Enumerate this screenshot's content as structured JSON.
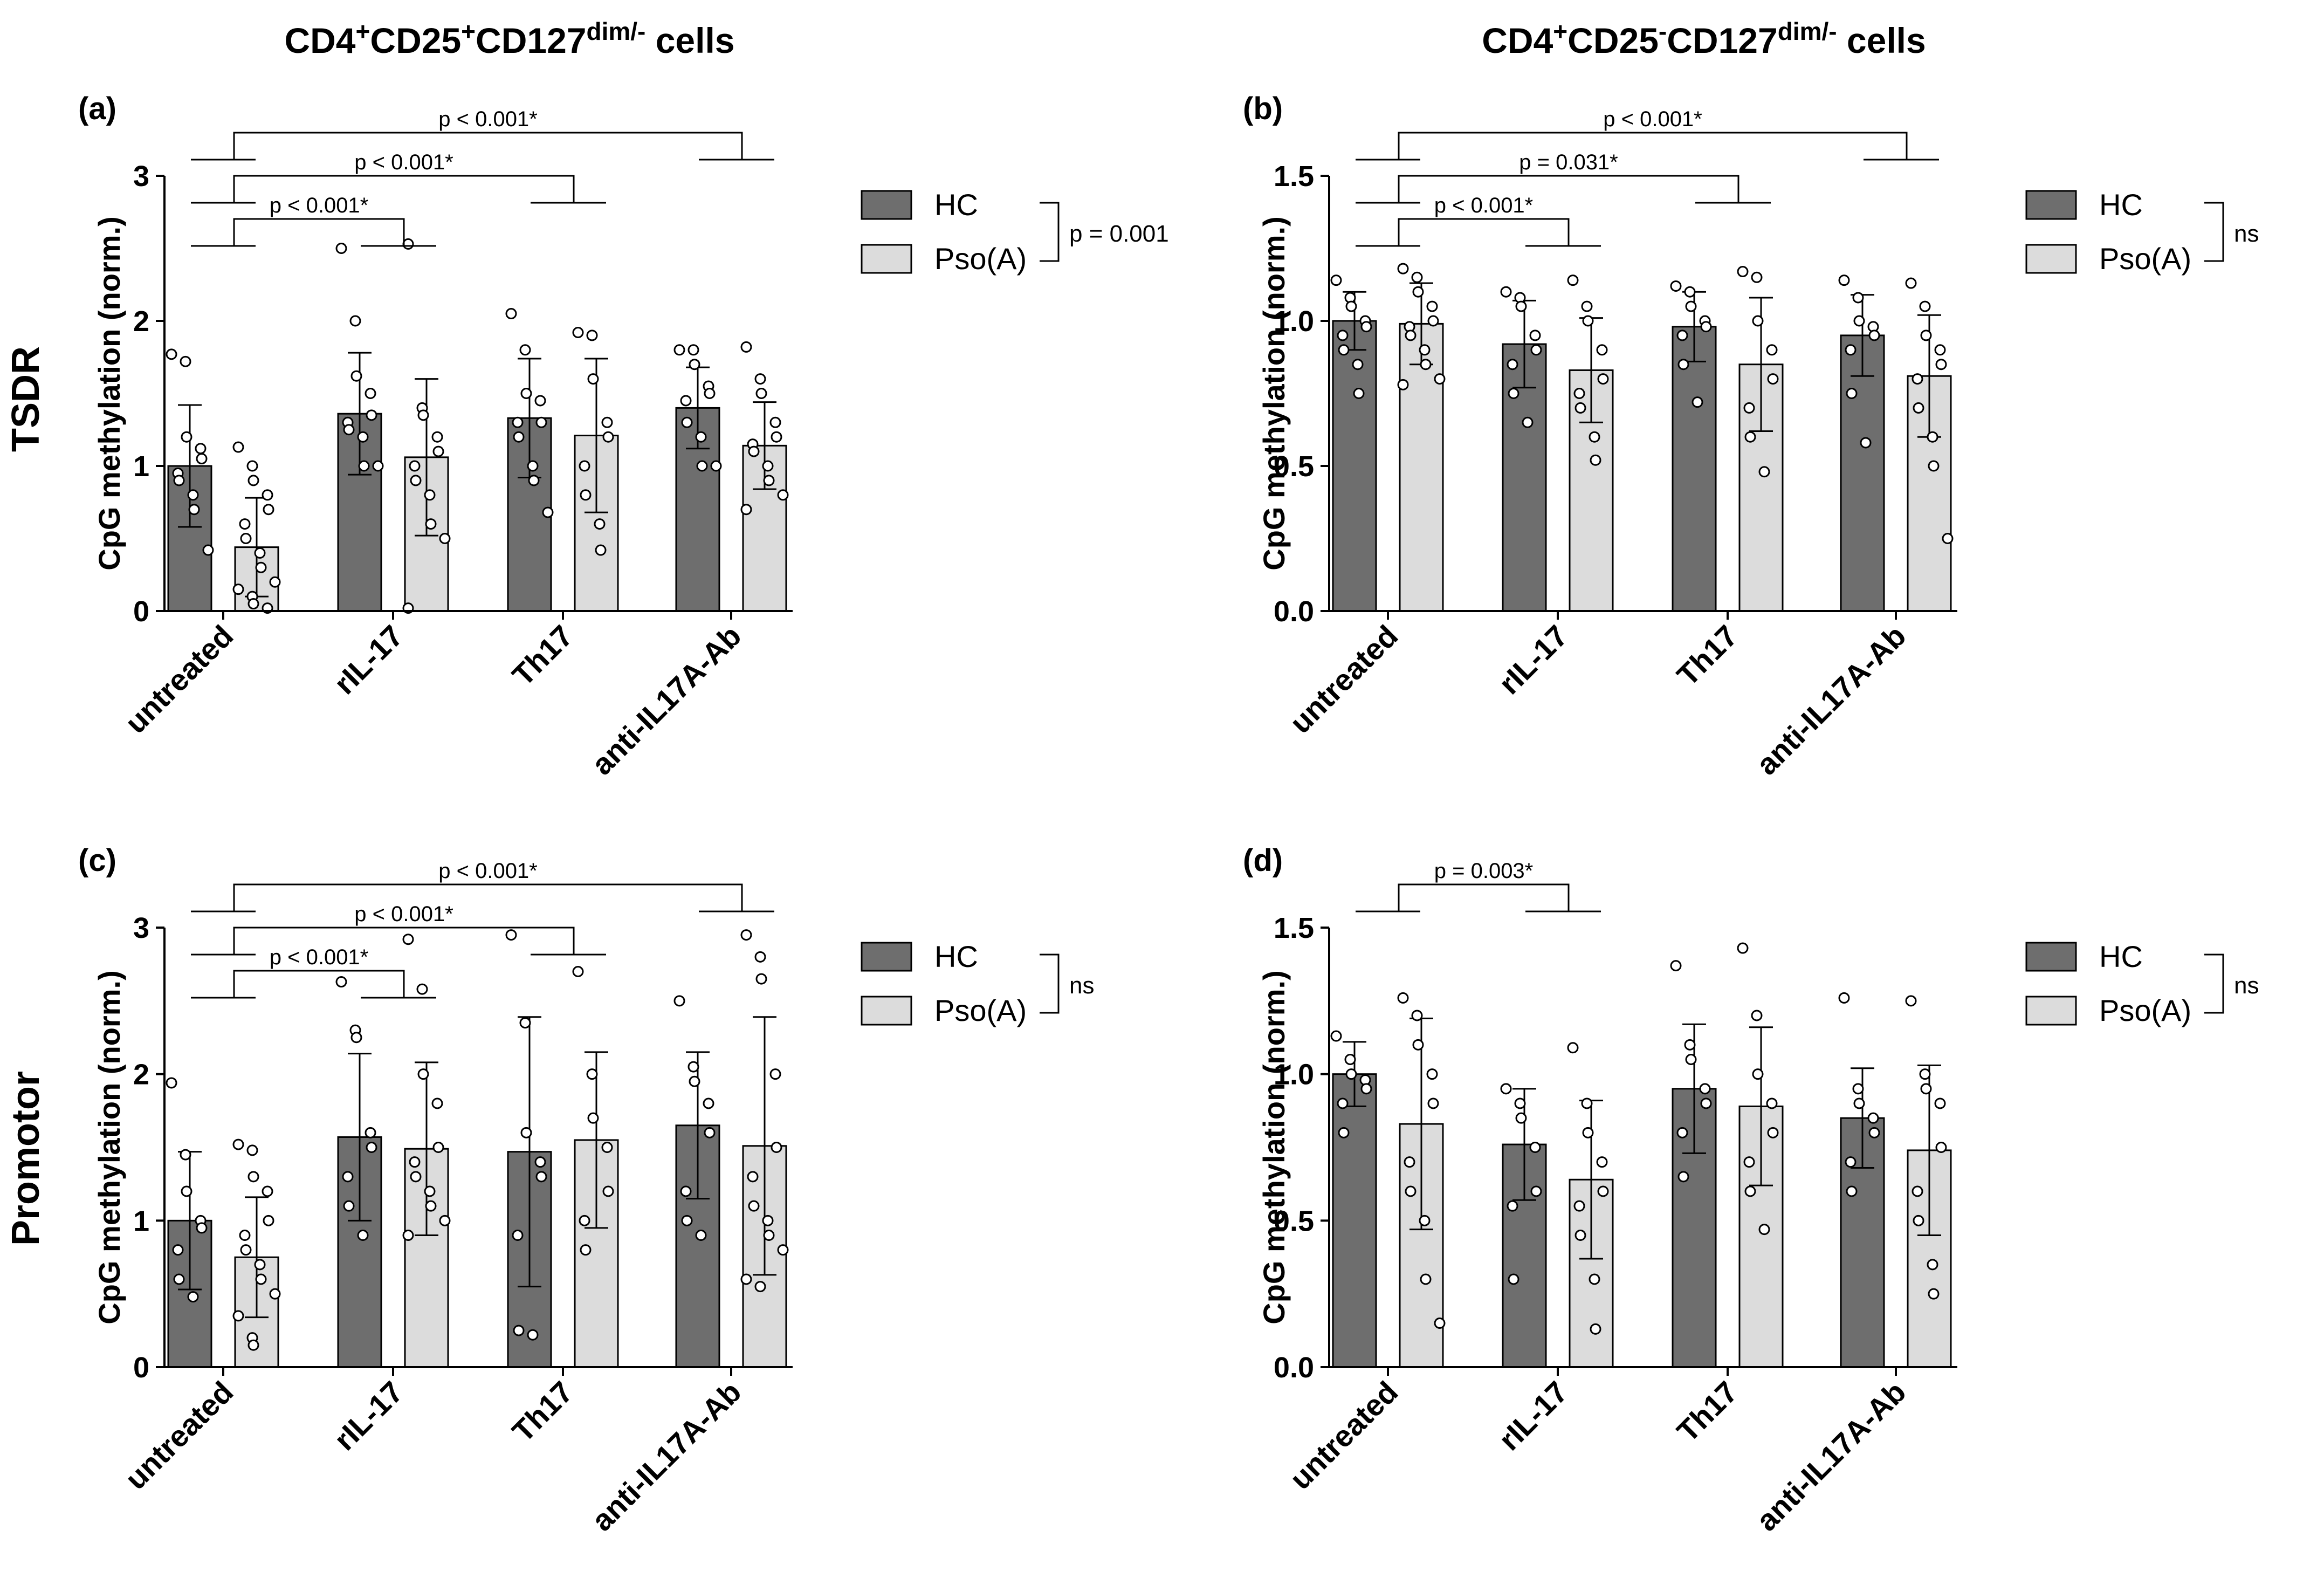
{
  "figure": {
    "column_titles": [
      {
        "base": "CD4",
        "sup1": "+",
        "mid1": "CD25",
        "sup2": "+",
        "mid2": "CD127",
        "sup3": "dim/-",
        "tail": " cells"
      },
      {
        "base": "CD4",
        "sup1": "+",
        "mid1": "CD25",
        "sup2": "-",
        "mid2": "CD127",
        "sup3": "dim/-",
        "tail": " cells"
      }
    ],
    "row_labels": [
      "TSDR",
      "Promotor"
    ]
  },
  "legend": {
    "hc": "HC",
    "pso": "Pso(A)"
  },
  "colors": {
    "hc_bar": "#6e6e6e",
    "pso_bar": "#dcdcdc",
    "axis": "#000000",
    "point_fill": "#ffffff"
  },
  "chart_data": [
    {
      "panel": "(a)",
      "type": "bar",
      "ylabel": "CpG methylation (norm.)",
      "ylim": [
        0,
        3
      ],
      "yticks": [
        "0",
        "1",
        "2",
        "3"
      ],
      "categories": [
        "untreated",
        "rIL-17",
        "Th17",
        "anti-IL17A-Ab"
      ],
      "series": [
        {
          "name": "HC",
          "values": [
            1.0,
            1.36,
            1.33,
            1.4
          ],
          "sd": [
            0.42,
            0.42,
            0.41,
            0.28
          ],
          "points": [
            [
              1.77,
              1.72,
              1.2,
              1.12,
              1.05,
              0.95,
              0.9,
              0.8,
              0.7,
              0.42
            ],
            [
              2.5,
              2.0,
              1.62,
              1.5,
              1.35,
              1.3,
              1.25,
              1.2,
              1.0,
              1.0
            ],
            [
              2.05,
              1.8,
              1.5,
              1.45,
              1.3,
              1.3,
              1.2,
              1.0,
              0.9,
              0.68
            ],
            [
              1.8,
              1.8,
              1.7,
              1.55,
              1.5,
              1.45,
              1.3,
              1.2,
              1.0,
              1.0
            ]
          ]
        },
        {
          "name": "Pso(A)",
          "values": [
            0.44,
            1.06,
            1.21,
            1.14
          ],
          "sd": [
            0.34,
            0.54,
            0.53,
            0.3
          ],
          "points": [
            [
              1.13,
              1.0,
              0.9,
              0.8,
              0.7,
              0.6,
              0.5,
              0.4,
              0.3,
              0.2,
              0.15,
              0.1,
              0.05,
              0.02
            ],
            [
              2.53,
              1.4,
              1.35,
              1.2,
              1.1,
              1.0,
              0.9,
              0.8,
              0.6,
              0.5,
              0.02
            ],
            [
              1.92,
              1.9,
              1.6,
              1.3,
              1.2,
              1.0,
              0.8,
              0.6,
              0.42
            ],
            [
              1.82,
              1.6,
              1.5,
              1.3,
              1.2,
              1.15,
              1.1,
              1.0,
              0.9,
              0.8,
              0.7
            ]
          ]
        }
      ],
      "comparisons": [
        {
          "label": "p < 0.001*",
          "from": [
            0,
            0
          ],
          "to": [
            3,
            0
          ]
        },
        {
          "label": "p < 0.001*",
          "from": [
            0,
            0
          ],
          "to": [
            2,
            0
          ]
        },
        {
          "label": "p < 0.001*",
          "from": [
            0,
            0
          ],
          "to": [
            1,
            0
          ]
        }
      ],
      "legend_bracket": "p = 0.001"
    },
    {
      "panel": "(b)",
      "type": "bar",
      "ylabel": "CpG methylation (norm.)",
      "ylim": [
        0,
        1.5
      ],
      "yticks": [
        "0.0",
        "0.5",
        "1.0",
        "1.5"
      ],
      "categories": [
        "untreated",
        "rIL-17",
        "Th17",
        "anti-IL17A-Ab"
      ],
      "series": [
        {
          "name": "HC",
          "values": [
            1.0,
            0.92,
            0.98,
            0.95
          ],
          "sd": [
            0.1,
            0.15,
            0.12,
            0.14
          ],
          "points": [
            [
              1.14,
              1.08,
              1.05,
              1.0,
              0.98,
              0.95,
              0.9,
              0.85,
              0.75
            ],
            [
              1.1,
              1.08,
              1.05,
              0.95,
              0.9,
              0.85,
              0.75,
              0.65
            ],
            [
              1.12,
              1.1,
              1.05,
              1.0,
              0.98,
              0.95,
              0.85,
              0.72
            ],
            [
              1.14,
              1.08,
              1.0,
              0.98,
              0.95,
              0.9,
              0.75,
              0.58
            ]
          ]
        },
        {
          "name": "Pso(A)",
          "values": [
            0.99,
            0.83,
            0.85,
            0.81
          ],
          "sd": [
            0.14,
            0.18,
            0.23,
            0.21
          ],
          "points": [
            [
              1.18,
              1.15,
              1.1,
              1.05,
              1.0,
              0.98,
              0.95,
              0.9,
              0.85,
              0.8,
              0.78
            ],
            [
              1.14,
              1.05,
              1.0,
              0.9,
              0.8,
              0.75,
              0.7,
              0.6,
              0.52
            ],
            [
              1.17,
              1.15,
              1.0,
              0.9,
              0.8,
              0.7,
              0.6,
              0.48
            ],
            [
              1.13,
              1.05,
              0.95,
              0.9,
              0.85,
              0.8,
              0.7,
              0.6,
              0.5,
              0.25
            ]
          ]
        }
      ],
      "comparisons": [
        {
          "label": "p < 0.001*",
          "from": [
            0,
            0
          ],
          "to": [
            3,
            0
          ]
        },
        {
          "label": "p = 0.031*",
          "from": [
            0,
            0
          ],
          "to": [
            2,
            0
          ]
        },
        {
          "label": "p < 0.001*",
          "from": [
            0,
            0
          ],
          "to": [
            1,
            0
          ]
        }
      ],
      "legend_bracket": "ns"
    },
    {
      "panel": "(c)",
      "type": "bar",
      "ylabel": "CpG methylation (norm.)",
      "ylim": [
        0,
        3
      ],
      "yticks": [
        "0",
        "1",
        "2",
        "3"
      ],
      "categories": [
        "untreated",
        "rIL-17",
        "Th17",
        "anti-IL17A-Ab"
      ],
      "series": [
        {
          "name": "HC",
          "values": [
            1.0,
            1.57,
            1.47,
            1.65
          ],
          "sd": [
            0.47,
            0.57,
            0.92,
            0.5
          ],
          "points": [
            [
              1.94,
              1.45,
              1.2,
              1.0,
              0.95,
              0.8,
              0.6,
              0.48
            ],
            [
              2.63,
              2.3,
              2.25,
              1.6,
              1.5,
              1.3,
              1.1,
              0.9
            ],
            [
              2.95,
              2.35,
              1.6,
              1.4,
              1.3,
              0.9,
              0.25,
              0.22
            ],
            [
              2.5,
              2.05,
              1.95,
              1.8,
              1.6,
              1.2,
              1.0,
              0.9
            ]
          ]
        },
        {
          "name": "Pso(A)",
          "values": [
            0.75,
            1.49,
            1.55,
            1.51
          ],
          "sd": [
            0.41,
            0.59,
            0.6,
            0.88
          ],
          "points": [
            [
              1.52,
              1.48,
              1.3,
              1.2,
              1.0,
              0.9,
              0.8,
              0.7,
              0.6,
              0.5,
              0.35,
              0.2,
              0.15
            ],
            [
              2.92,
              2.58,
              2.0,
              1.8,
              1.5,
              1.4,
              1.3,
              1.2,
              1.1,
              1.0,
              0.9
            ],
            [
              2.7,
              2.0,
              1.7,
              1.5,
              1.2,
              1.0,
              0.8
            ],
            [
              2.95,
              2.8,
              2.65,
              2.0,
              1.5,
              1.3,
              1.1,
              1.0,
              0.9,
              0.8,
              0.6,
              0.55
            ]
          ]
        }
      ],
      "comparisons": [
        {
          "label": "p < 0.001*",
          "from": [
            0,
            0
          ],
          "to": [
            3,
            0
          ]
        },
        {
          "label": "p < 0.001*",
          "from": [
            0,
            0
          ],
          "to": [
            2,
            0
          ]
        },
        {
          "label": "p < 0.001*",
          "from": [
            0,
            0
          ],
          "to": [
            1,
            0
          ]
        }
      ],
      "legend_bracket": "ns"
    },
    {
      "panel": "(d)",
      "type": "bar",
      "ylabel": "CpG methylation (norm.)",
      "ylim": [
        0,
        1.5
      ],
      "yticks": [
        "0.0",
        "0.5",
        "1.0",
        "1.5"
      ],
      "categories": [
        "untreated",
        "rIL-17",
        "Th17",
        "anti-IL17A-Ab"
      ],
      "series": [
        {
          "name": "HC",
          "values": [
            1.0,
            0.76,
            0.95,
            0.85
          ],
          "sd": [
            0.11,
            0.19,
            0.22,
            0.17
          ],
          "points": [
            [
              1.13,
              1.05,
              1.0,
              0.98,
              0.95,
              0.9,
              0.8
            ],
            [
              0.95,
              0.9,
              0.85,
              0.75,
              0.6,
              0.55,
              0.3
            ],
            [
              1.37,
              1.1,
              1.05,
              0.95,
              0.9,
              0.8,
              0.65
            ],
            [
              1.26,
              0.95,
              0.9,
              0.85,
              0.8,
              0.7,
              0.6
            ]
          ]
        },
        {
          "name": "Pso(A)",
          "values": [
            0.83,
            0.64,
            0.89,
            0.74
          ],
          "sd": [
            0.36,
            0.27,
            0.27,
            0.29
          ],
          "points": [
            [
              1.26,
              1.2,
              1.1,
              1.0,
              0.9,
              0.7,
              0.6,
              0.5,
              0.3,
              0.15
            ],
            [
              1.09,
              0.9,
              0.8,
              0.7,
              0.6,
              0.55,
              0.45,
              0.3,
              0.13
            ],
            [
              1.43,
              1.2,
              1.0,
              0.9,
              0.8,
              0.7,
              0.6,
              0.47
            ],
            [
              1.25,
              1.0,
              0.95,
              0.9,
              0.75,
              0.6,
              0.5,
              0.35,
              0.25
            ]
          ]
        }
      ],
      "comparisons": [
        {
          "label": "p = 0.003*",
          "from": [
            0,
            0
          ],
          "to": [
            1,
            0
          ]
        }
      ],
      "legend_bracket": "ns"
    }
  ]
}
